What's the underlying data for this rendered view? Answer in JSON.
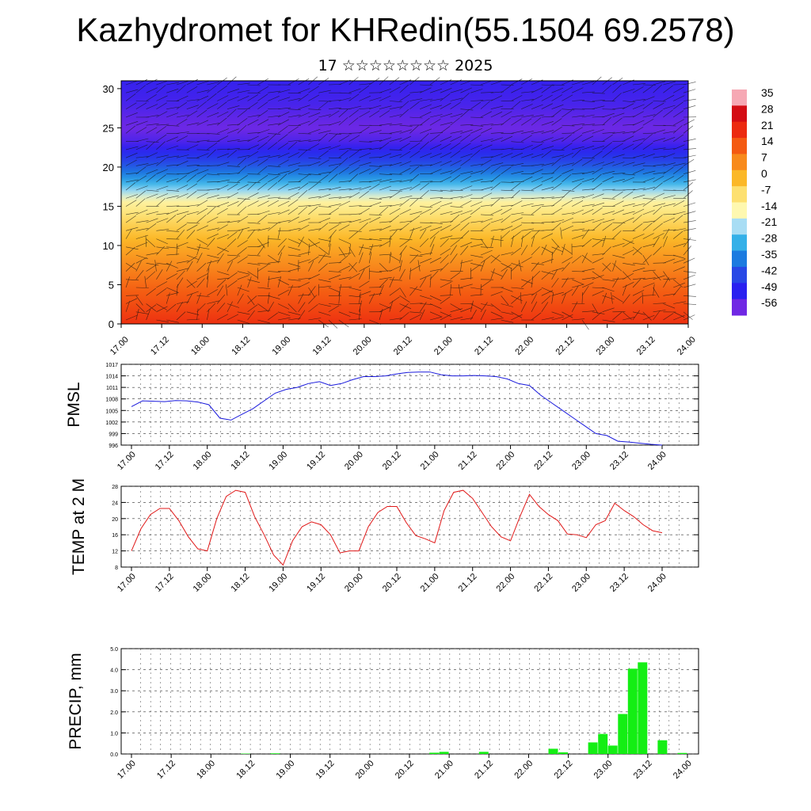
{
  "header": {
    "title": "Kazhydromet for KHRedin(55.1504 69.2578)",
    "subtitle": "17 ☆☆☆☆☆☆☆☆ 2025"
  },
  "chart_data": [
    {
      "type": "heatmap",
      "title": "",
      "xlabel": "",
      "ylabel": "",
      "x_ticks": [
        "17.00",
        "17.12",
        "18.00",
        "18.12",
        "19.00",
        "19.12",
        "20.00",
        "20.12",
        "21.00",
        "21.12",
        "22.00",
        "22.12",
        "23.00",
        "23.12",
        "24.00"
      ],
      "y_ticks": [
        "0",
        "5",
        "10",
        "15",
        "20",
        "25",
        "30"
      ],
      "ylim": [
        0,
        31
      ],
      "colorbar": {
        "labels": [
          "35",
          "28",
          "21",
          "14",
          "7",
          "0",
          "-7",
          "-14",
          "-21",
          "-28",
          "-35",
          "-42",
          "-49",
          "-56"
        ],
        "colors": [
          "#f6a8b4",
          "#d40c14",
          "#ec2a10",
          "#f45a12",
          "#f88a1c",
          "#fbb828",
          "#fde070",
          "#fef8b0",
          "#a8ddf4",
          "#34b0e8",
          "#1c7be0",
          "#2848e6",
          "#2a20f0",
          "#7028e4"
        ]
      },
      "temperature_profile": [
        {
          "h": 0,
          "v": 20
        },
        {
          "h": 5,
          "v": 12
        },
        {
          "h": 10,
          "v": 2
        },
        {
          "h": 13,
          "v": -5
        },
        {
          "h": 15.5,
          "v": -12
        },
        {
          "h": 17,
          "v": -22
        },
        {
          "h": 19,
          "v": -34
        },
        {
          "h": 21,
          "v": -44
        },
        {
          "h": 23,
          "v": -52
        },
        {
          "h": 25,
          "v": -56
        },
        {
          "h": 28,
          "v": -52
        },
        {
          "h": 31,
          "v": -50
        }
      ],
      "annotation": "wind barbs overlay"
    },
    {
      "type": "line",
      "ylabel": "PMSL",
      "x_ticks": [
        "17.00",
        "17.12",
        "18.00",
        "18.12",
        "19.00",
        "19.12",
        "20.00",
        "20.12",
        "21.00",
        "21.12",
        "22.00",
        "22.12",
        "23.00",
        "23.12",
        "24.00"
      ],
      "y_ticks": [
        "1017",
        "1014",
        "1011",
        "1008",
        "1005",
        "1002",
        "999",
        "996"
      ],
      "ylim": [
        996,
        1017
      ],
      "grid": true,
      "color": "#1a1adc",
      "values": [
        1006,
        1007.5,
        1007.4,
        1007.3,
        1007.6,
        1007.5,
        1007.2,
        1006.5,
        1003,
        1002.5,
        1004,
        1005.5,
        1007.5,
        1009.5,
        1010.5,
        1011,
        1012,
        1012.5,
        1011.5,
        1012,
        1013,
        1013.8,
        1013.8,
        1014,
        1014.5,
        1014.9,
        1015,
        1015,
        1014.3,
        1014,
        1014,
        1014.1,
        1014,
        1013.8,
        1013.2,
        1012,
        1011.5,
        1009,
        1007,
        1005,
        1003,
        1001,
        999,
        998.5,
        997,
        996.8,
        996.5,
        996.2,
        996
      ]
    },
    {
      "type": "line",
      "ylabel": "TEMP at 2 M",
      "x_ticks": [
        "17.00",
        "17.12",
        "18.00",
        "18.12",
        "19.00",
        "19.12",
        "20.00",
        "20.12",
        "21.00",
        "21.12",
        "22.00",
        "22.12",
        "23.00",
        "23.12",
        "24.00"
      ],
      "y_ticks": [
        "28",
        "24",
        "20",
        "16",
        "12",
        "8"
      ],
      "ylim": [
        8,
        28
      ],
      "grid": true,
      "color": "#e01818",
      "values": [
        12,
        17.5,
        21,
        22.5,
        22.5,
        19.5,
        15.5,
        12.5,
        12,
        20,
        25.5,
        27,
        26.5,
        20.5,
        16,
        11,
        8.5,
        14.5,
        18,
        19.2,
        18.5,
        16,
        11.5,
        12,
        12,
        18,
        21.5,
        23,
        23,
        19,
        15.8,
        15,
        14,
        22,
        26.5,
        27,
        25,
        21.5,
        18,
        15.5,
        14.5,
        20.5,
        26,
        23,
        21,
        19.5,
        16.2,
        16,
        15.3,
        18.5,
        19.5,
        23.8,
        22,
        20.5,
        18.5,
        17,
        16.5
      ]
    },
    {
      "type": "bar",
      "ylabel": "PRECIP, mm",
      "x_ticks": [
        "17.00",
        "17.12",
        "18.00",
        "18.12",
        "19.00",
        "19.12",
        "20.00",
        "20.12",
        "21.00",
        "21.12",
        "22.00",
        "22.12",
        "23.00",
        "23.12",
        "24.00"
      ],
      "y_ticks": [
        "5.0",
        "4.0",
        "3.0",
        "2.0",
        "1.0",
        "0.0"
      ],
      "ylim": [
        0,
        5
      ],
      "grid": true,
      "color": "#14ee14",
      "values": [
        0,
        0,
        0,
        0,
        0,
        0,
        0,
        0,
        0,
        0,
        0,
        0.02,
        0,
        0,
        0.03,
        0,
        0,
        0,
        0,
        0,
        0,
        0,
        0,
        0,
        0,
        0,
        0,
        0,
        0,
        0,
        0.06,
        0.1,
        0,
        0,
        0,
        0.1,
        0,
        0,
        0,
        0,
        0,
        0,
        0.25,
        0.08,
        0,
        0,
        0.55,
        0.95,
        0.4,
        1.9,
        4.05,
        4.35,
        0,
        0.65,
        0,
        0.05
      ]
    }
  ]
}
